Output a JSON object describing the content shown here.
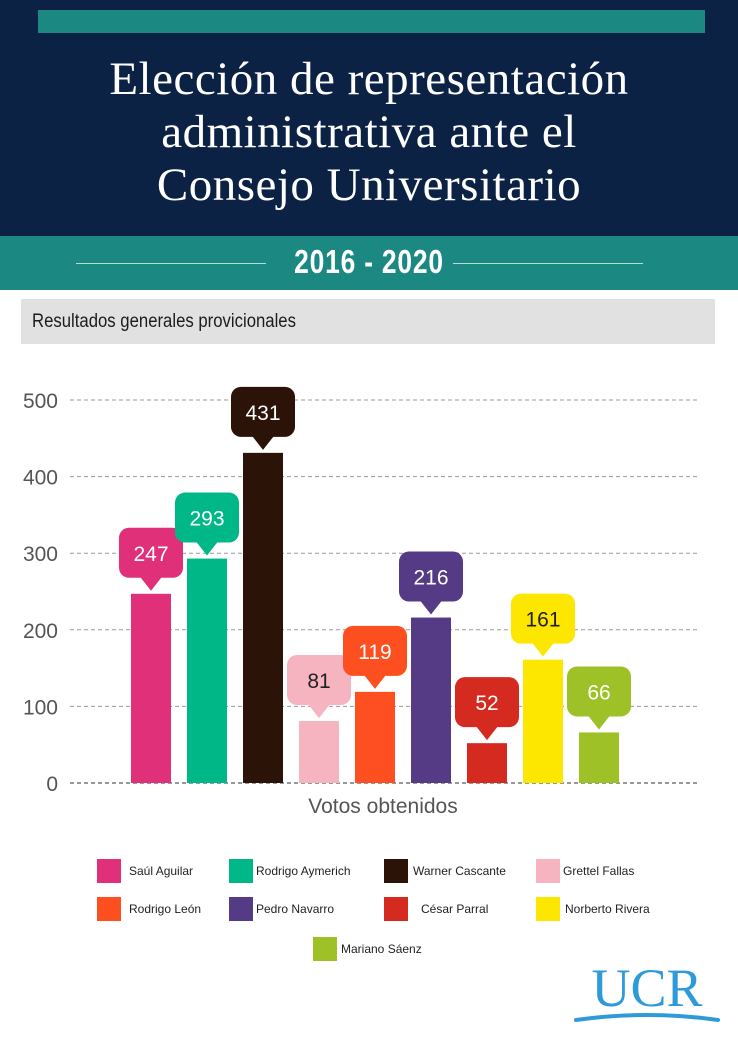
{
  "header": {
    "title_lines": [
      "Elección de representación",
      "administrativa ante el",
      "Consejo Universitario"
    ],
    "years": "2016 - 2020",
    "subtitle": "Resultados generales provicionales"
  },
  "chart_data": {
    "type": "bar",
    "categories": [
      "Saúl Aguilar",
      "Rodrigo Aymerich",
      "Warner Cascante",
      "Grettel Fallas",
      "Rodrigo León",
      "Pedro Navarro",
      "César Parral",
      "Norberto Rivera",
      "Mariano Sáenz"
    ],
    "values": [
      247,
      293,
      431,
      81,
      119,
      216,
      52,
      161,
      66
    ],
    "colors": [
      "#e0307a",
      "#00b887",
      "#2b1308",
      "#f6b3c0",
      "#fd4f1f",
      "#553a85",
      "#d52a20",
      "#fde600",
      "#9ec128"
    ],
    "xlabel": "Votos obtenidos",
    "ylabel": "",
    "ylim": [
      0,
      500
    ],
    "yticks": [
      0,
      100,
      200,
      300,
      400,
      500
    ],
    "grid": true,
    "legend_position": "bottom"
  },
  "logo": {
    "text": "UCR",
    "color": "#2f9ad9"
  }
}
